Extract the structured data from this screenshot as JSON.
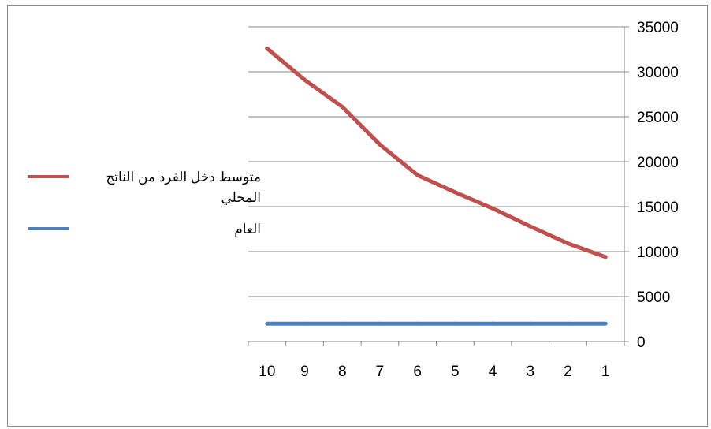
{
  "chart_data": {
    "type": "line",
    "title": "",
    "xlabel": "",
    "ylabel": "",
    "x_direction": "right-to-left",
    "y_axis_side": "right",
    "categories": [
      "1",
      "2",
      "3",
      "4",
      "5",
      "6",
      "7",
      "8",
      "9",
      "10"
    ],
    "ylim": [
      0,
      35000
    ],
    "y_ticks": [
      "0",
      "5000",
      "10000",
      "15000",
      "20000",
      "25000",
      "30000",
      "35000"
    ],
    "grid": "horizontal",
    "legend_position": "left",
    "series": [
      {
        "name": "متوسط دخل الفرد من الناتج المحلي",
        "color": "#c0504d",
        "values": [
          9400,
          10900,
          12800,
          14800,
          16600,
          18500,
          21900,
          26100,
          29100,
          32600
        ]
      },
      {
        "name": "العام",
        "color": "#4f81bd",
        "values": [
          2000,
          2000,
          2000,
          2000,
          2000,
          2000,
          2000,
          2000,
          2000,
          2000
        ]
      }
    ]
  }
}
